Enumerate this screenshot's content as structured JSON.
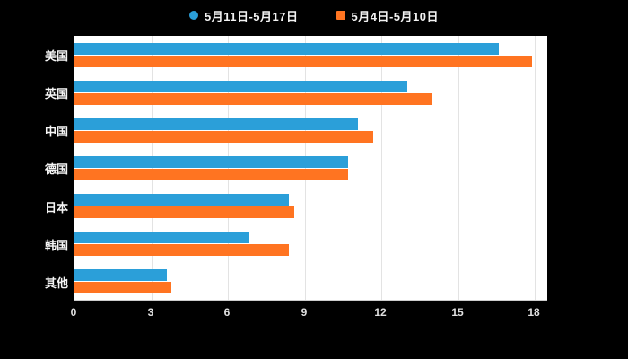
{
  "legend": {
    "items": [
      {
        "label": "5月11日-5月17日",
        "color": "#2B9FD9",
        "marker": "circle"
      },
      {
        "label": "5月4日-5月10日",
        "color": "#FF7421",
        "marker": "square"
      }
    ]
  },
  "chart_data": {
    "type": "bar",
    "orientation": "horizontal",
    "title": "",
    "xlabel": "",
    "ylabel": "",
    "categories": [
      "美国",
      "英国",
      "中国",
      "德国",
      "日本",
      "韩国",
      "其他"
    ],
    "series": [
      {
        "name": "5月11日-5月17日",
        "color": "#2B9FD9",
        "values": [
          16.6,
          13.0,
          11.1,
          10.7,
          8.4,
          6.8,
          3.6
        ]
      },
      {
        "name": "5月4日-5月10日",
        "color": "#FF7421",
        "values": [
          17.9,
          14.0,
          11.7,
          10.7,
          8.6,
          8.4,
          3.8
        ]
      }
    ],
    "xlim": [
      0,
      18
    ],
    "x_ticks": [
      0,
      3,
      6,
      9,
      12,
      15,
      18
    ],
    "grid": true,
    "legend_position": "top",
    "page_background": "#000000",
    "plot_background": "#ffffff"
  }
}
